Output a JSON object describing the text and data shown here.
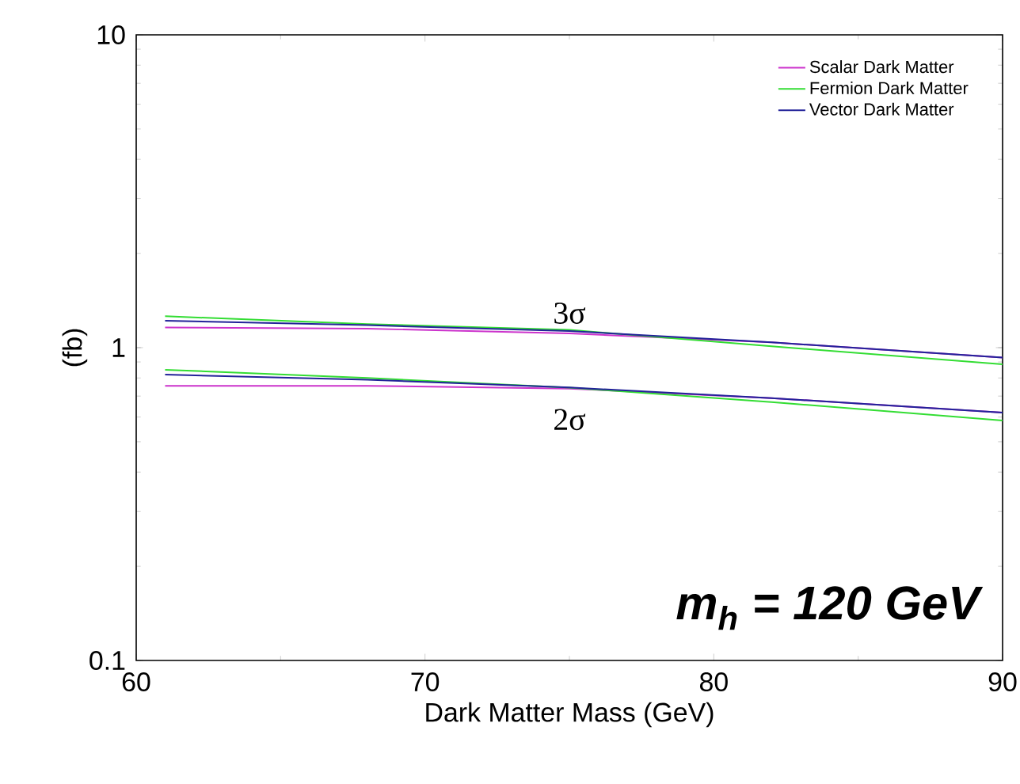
{
  "chart_data": {
    "type": "line",
    "xlabel": "Dark Matter Mass (GeV)",
    "ylabel": "(fb)",
    "x": [
      61,
      68,
      75,
      82,
      90
    ],
    "series": [
      {
        "name": "Scalar Dark Matter",
        "color": "#cc33cc",
        "values": [
          1.16,
          1.15,
          1.11,
          1.04,
          0.93
        ]
      },
      {
        "name": "Fermion Dark Matter",
        "color": "#33dd33",
        "values": [
          1.26,
          1.19,
          1.14,
          1.01,
          0.885
        ]
      },
      {
        "name": "Vector Dark Matter",
        "color": "#222299",
        "values": [
          1.22,
          1.18,
          1.13,
          1.04,
          0.93
        ]
      },
      {
        "color": "#cc33cc",
        "values": [
          0.755,
          0.755,
          0.74,
          0.69,
          0.62
        ]
      },
      {
        "color": "#33dd33",
        "values": [
          0.85,
          0.8,
          0.745,
          0.67,
          0.585
        ]
      },
      {
        "color": "#222299",
        "values": [
          0.82,
          0.79,
          0.746,
          0.69,
          0.62
        ]
      }
    ],
    "xlim": [
      60,
      90
    ],
    "ylim": [
      0.1,
      10
    ],
    "xticks": [
      60,
      70,
      80,
      90
    ],
    "yticks": [
      0.1,
      1,
      10
    ],
    "log": "y",
    "legend": "top right",
    "grid": false,
    "marker": "none",
    "line_style": "solid",
    "annotations": [
      "3σ",
      "2σ",
      "m$_{h}$ = 120 GeV"
    ]
  }
}
